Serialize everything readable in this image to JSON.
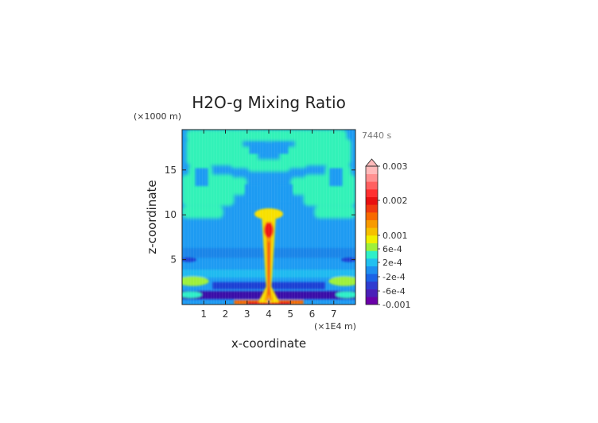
{
  "chart_data": {
    "type": "heatmap",
    "title": "H2O-g Mixing Ratio",
    "time_label": "7440 s",
    "xlabel": "x-coordinate",
    "ylabel": "z-coordinate",
    "x_unit": "(×1E4 m)",
    "y_unit": "(×1000 m)",
    "xlim": [
      0,
      8
    ],
    "ylim": [
      0,
      19.5
    ],
    "x_ticks": [
      1,
      2,
      3,
      4,
      5,
      6,
      7
    ],
    "y_ticks": [
      5,
      10,
      15
    ],
    "colorbar": {
      "labels": [
        "0.003",
        "0.002",
        "0.001",
        "6e-4",
        "2e-4",
        "-2e-4",
        "-6e-4",
        "-0.001"
      ],
      "colors": [
        "#6a00a8",
        "#4a1fb8",
        "#2f3cd0",
        "#1b63e6",
        "#1d8ff0",
        "#21c0f0",
        "#2ef0c8",
        "#9ef03a",
        "#f0f000",
        "#f6c000",
        "#f89a00",
        "#f86a00",
        "#f03a10",
        "#e81010",
        "#ff3030",
        "#ff6060",
        "#ff9090",
        "#ffbaba"
      ],
      "extend": "max"
    },
    "field": {
      "background": "#1e9bf2",
      "upper_layer": "#31f2b8",
      "plume_core": "#f01414",
      "plume_edge": "#f8e000",
      "low_layer": "#1a3fd4",
      "lowest_layer": "#3b0fa8"
    }
  }
}
